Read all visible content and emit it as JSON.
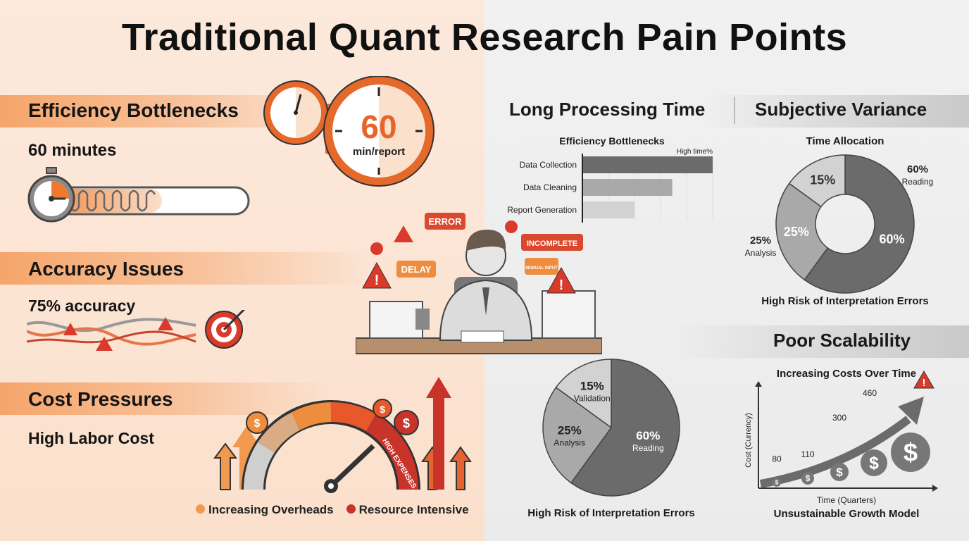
{
  "title": "Traditional Quant Research Pain Points",
  "left": {
    "efficiency": {
      "heading": "Efficiency Bottlenecks",
      "value": "60 minutes",
      "clock_number": "60",
      "clock_unit": "min/report"
    },
    "accuracy": {
      "heading": "Accuracy Issues",
      "value": "75% accuracy"
    },
    "cost": {
      "heading": "Cost Pressures",
      "value": "High Labor Cost",
      "gauge_label": "HIGH EXPENSES",
      "legend": [
        {
          "label": "Increasing Overheads",
          "color": "#f0994f"
        },
        {
          "label": "Resource Intensive",
          "color": "#c8332a"
        }
      ]
    }
  },
  "illustration": {
    "bubbles": [
      "ERROR",
      "INCOMPLETE",
      "DELAY",
      "MANUAL INPUT"
    ]
  },
  "right": {
    "long_processing": {
      "heading": "Long Processing Time"
    },
    "subjective": {
      "heading": "Subjective Variance"
    },
    "scalability": {
      "heading": "Poor Scalability"
    }
  },
  "colors": {
    "accent_orange": "#ef7a2e",
    "alert_red": "#d93a2b",
    "dark_grey": "#6b6b6b",
    "mid_grey": "#a9a9a9",
    "light_grey": "#d2d2d2"
  },
  "chart_data": [
    {
      "type": "bar",
      "orientation": "horizontal",
      "title": "Efficiency Bottlenecks",
      "xlabel": "High time%",
      "categories": [
        "Data Collection",
        "Data Cleaning",
        "Report Generation"
      ],
      "values": [
        100,
        69,
        40
      ],
      "grid": true
    },
    {
      "type": "pie",
      "donut": true,
      "title": "Time Allocation",
      "caption": "High Risk of Interpretation Errors",
      "slices": [
        {
          "label": "Reading",
          "value": 60,
          "text": "60%",
          "color": "#6b6b6b"
        },
        {
          "label": "Analysis",
          "value": 25,
          "text": "25%",
          "color": "#a9a9a9"
        },
        {
          "label": "",
          "value": 15,
          "text": "15%",
          "color": "#d2d2d2"
        }
      ]
    },
    {
      "type": "pie",
      "caption": "High Risk of Interpretation Errors",
      "slices": [
        {
          "label": "Reading",
          "value": 60,
          "text": "60%",
          "color": "#6b6b6b"
        },
        {
          "label": "Analysis",
          "value": 25,
          "text": "25%",
          "color": "#a9a9a9"
        },
        {
          "label": "Validation",
          "value": 15,
          "text": "15%",
          "color": "#d2d2d2"
        }
      ]
    },
    {
      "type": "line",
      "title": "Increasing Costs Over Time",
      "xlabel": "Time (Quarters)",
      "ylabel": "Cost (Currency)",
      "caption": "Unsustainable Growth Model",
      "values": [
        80,
        110,
        300,
        460
      ],
      "point_labels": [
        "80",
        "110",
        "300",
        "460"
      ]
    }
  ]
}
